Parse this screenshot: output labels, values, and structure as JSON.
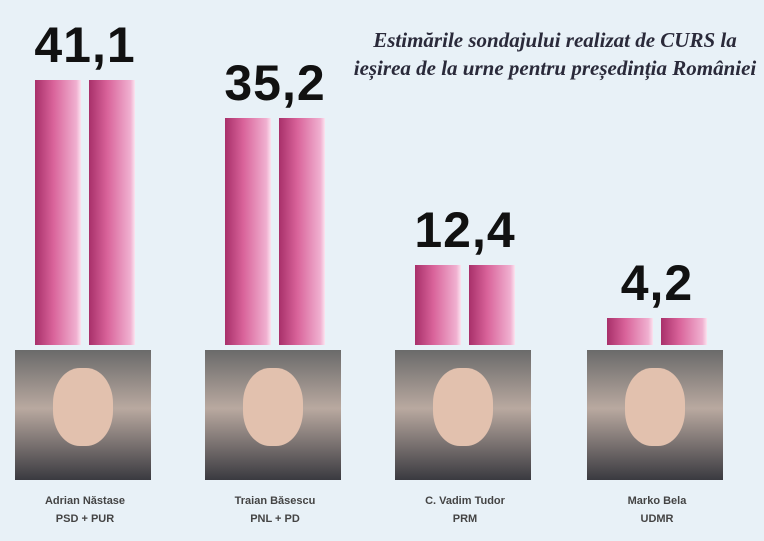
{
  "chart_data": {
    "type": "bar",
    "title": "Estimările sondajului realizat de CURS la ieșirea de la urne pentru președinția României",
    "categories": [
      "Adrian Năstase",
      "Traian Băsescu",
      "C. Vadim Tudor",
      "Marko Bela"
    ],
    "parties": [
      "PSD + PUR",
      "PNL + PD",
      "PRM",
      "UDMR"
    ],
    "values": [
      41.1,
      35.2,
      12.4,
      4.2
    ],
    "value_labels": [
      "41,1",
      "35,2",
      "12,4",
      "4,2"
    ],
    "bar_color": "#d9639a",
    "background": "#e8f1f7"
  }
}
